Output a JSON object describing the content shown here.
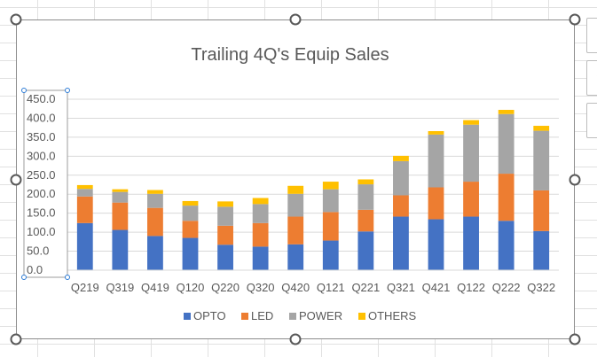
{
  "chart_data": {
    "type": "bar",
    "stacked": true,
    "title": "Trailing 4Q's Equip Sales",
    "categories": [
      "Q219",
      "Q319",
      "Q419",
      "Q120",
      "Q220",
      "Q320",
      "Q420",
      "Q121",
      "Q221",
      "Q321",
      "Q421",
      "Q122",
      "Q222",
      "Q322"
    ],
    "series": [
      {
        "name": "OPTO",
        "color": "#4472c4",
        "values": [
          124,
          106,
          90,
          85,
          67,
          62,
          68,
          78,
          102,
          141,
          134,
          141,
          130,
          103
        ]
      },
      {
        "name": "LED",
        "color": "#ed7d31",
        "values": [
          70,
          72,
          74,
          45,
          50,
          62,
          73,
          75,
          57,
          56,
          84,
          92,
          124,
          107
        ]
      },
      {
        "name": "POWER",
        "color": "#a5a5a5",
        "values": [
          20,
          28,
          37,
          40,
          50,
          50,
          60,
          60,
          67,
          90,
          139,
          150,
          157,
          157
        ]
      },
      {
        "name": "OTHERS",
        "color": "#ffc000",
        "values": [
          10,
          7,
          10,
          12,
          14,
          16,
          21,
          20,
          13,
          14,
          9,
          12,
          11,
          13
        ]
      }
    ],
    "ylim": [
      0,
      450
    ],
    "yticks": [
      "0.0",
      "50.0",
      "100.0",
      "150.0",
      "200.0",
      "250.0",
      "300.0",
      "350.0",
      "400.0",
      "450.0"
    ],
    "grid": true,
    "legend": "bottom"
  }
}
